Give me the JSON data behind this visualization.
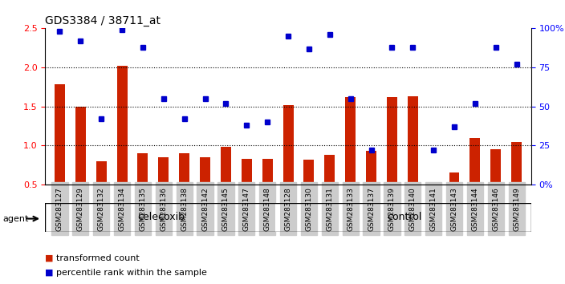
{
  "title": "GDS3384 / 38711_at",
  "samples": [
    "GSM283127",
    "GSM283129",
    "GSM283132",
    "GSM283134",
    "GSM283135",
    "GSM283136",
    "GSM283138",
    "GSM283142",
    "GSM283145",
    "GSM283147",
    "GSM283148",
    "GSM283128",
    "GSM283130",
    "GSM283131",
    "GSM283133",
    "GSM283137",
    "GSM283139",
    "GSM283140",
    "GSM283141",
    "GSM283143",
    "GSM283144",
    "GSM283146",
    "GSM283149"
  ],
  "bar_values": [
    1.78,
    1.5,
    0.8,
    2.02,
    0.9,
    0.85,
    0.9,
    0.85,
    0.98,
    0.83,
    0.83,
    1.52,
    0.82,
    0.88,
    1.62,
    0.93,
    1.62,
    1.63,
    0.52,
    0.65,
    1.1,
    0.95,
    1.05
  ],
  "dot_values": [
    98,
    92,
    42,
    99,
    88,
    55,
    42,
    55,
    52,
    38,
    40,
    95,
    87,
    96,
    55,
    22,
    88,
    88,
    22,
    37,
    52,
    88,
    77
  ],
  "group1_count": 11,
  "group2_count": 12,
  "group1_label": "celecoxib",
  "group2_label": "control",
  "bar_color": "#cc2200",
  "dot_color": "#0000cc",
  "bar_bottom": 0.5,
  "ylim_left": [
    0.5,
    2.5
  ],
  "ylim_right": [
    0,
    100
  ],
  "yticks_left": [
    0.5,
    1.0,
    1.5,
    2.0,
    2.5
  ],
  "yticks_right": [
    0,
    25,
    50,
    75,
    100
  ],
  "ytick_labels_right": [
    "0%",
    "25",
    "50",
    "75",
    "100%"
  ],
  "legend_bar": "transformed count",
  "legend_dot": "percentile rank within the sample",
  "agent_label": "agent",
  "bg_color": "#ffffff",
  "group_bar_color": "#88ee88",
  "sample_bg_color": "#cccccc"
}
